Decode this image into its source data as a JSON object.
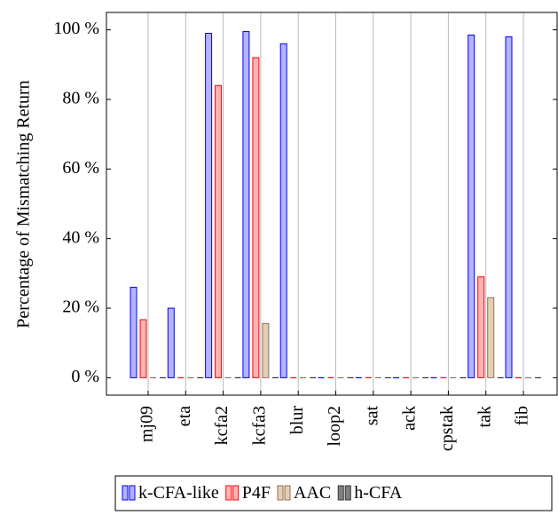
{
  "chart_data": {
    "type": "bar",
    "y_label": "Percentage of Mismatching Return",
    "categories": [
      "mj09",
      "eta",
      "kcfa2",
      "kcfa3",
      "blur",
      "loop2",
      "sat",
      "ack",
      "cpstak",
      "tak",
      "fib"
    ],
    "series": [
      {
        "name": "k-CFA-like",
        "color": "#b3b3ff",
        "edge_color": "#0000ff",
        "values": [
          26,
          20,
          99,
          99.5,
          96,
          0,
          0,
          0,
          0,
          98.5,
          98
        ]
      },
      {
        "name": "P4F",
        "color": "#ffb3b3",
        "edge_color": "#ff0000",
        "values": [
          16.7,
          0,
          84,
          92,
          0,
          0,
          0,
          0,
          0,
          29,
          0
        ]
      },
      {
        "name": "AAC",
        "color": "#e6cdb3",
        "edge_color": "#8c7359",
        "values": [
          0,
          0,
          0,
          15.6,
          0,
          0,
          0,
          0,
          0,
          23,
          0
        ]
      },
      {
        "name": "h-CFA",
        "color": "#808080",
        "edge_color": "#333333",
        "values": [
          0,
          0,
          0,
          0,
          0,
          0,
          0,
          0,
          0,
          0,
          0
        ]
      }
    ],
    "ylim": [
      -5,
      105
    ],
    "yticks": [
      {
        "value": 0,
        "label": "0 %"
      },
      {
        "value": 20,
        "label": "20 %"
      },
      {
        "value": 40,
        "label": "40 %"
      },
      {
        "value": 60,
        "label": "60 %"
      },
      {
        "value": 80,
        "label": "80 %"
      },
      {
        "value": 100,
        "label": "100 %"
      }
    ],
    "grid": true,
    "legend": "bottom"
  }
}
